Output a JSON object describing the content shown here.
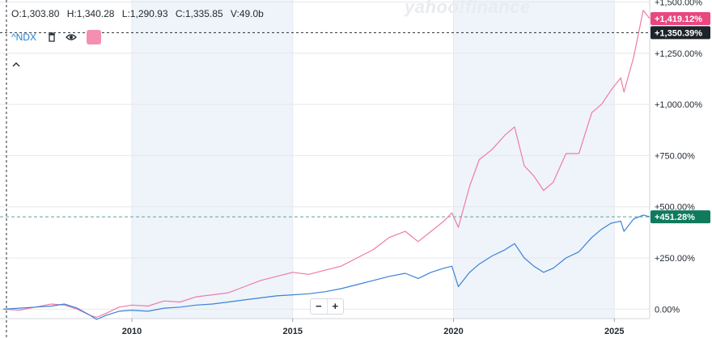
{
  "ohlc": {
    "open": "O:1,303.80",
    "high": "H:1,340.28",
    "low": "L:1,290.93",
    "close": "C:1,335.85",
    "volume": "V:49.0b"
  },
  "legend": {
    "symbol": "^NDX",
    "swatch_color": "#f48fb1"
  },
  "watermark": "yahoo!finance",
  "zoom": {
    "minus": "−",
    "plus": "+"
  },
  "colors": {
    "pink_series": "#ef7ba7",
    "blue_series": "#3b82d6",
    "pink_tag": "#e8477f",
    "green_tag": "#0f7a5c",
    "crosshair_tag": "#1d232a",
    "band": "#eef4fa",
    "grid": "#e6e8eb"
  },
  "chart_data": {
    "type": "line",
    "x_unit": "year",
    "x_ticks": [
      2010,
      2015,
      2020,
      2025
    ],
    "x_tick_labels": [
      "2010",
      "2015",
      "2020",
      "2025"
    ],
    "xlim": [
      2005.9,
      2026.1
    ],
    "shaded_year_bands": [
      [
        2010,
        2015
      ],
      [
        2020,
        2025
      ]
    ],
    "y_unit": "percent",
    "y_ticks": [
      0,
      250,
      500,
      750,
      1000,
      1250,
      1500
    ],
    "y_tick_labels": [
      "0.00%",
      "+250.00%",
      "+500.00%",
      "+750.00%",
      "+1,000.00%",
      "+1,250.00%",
      "+1,500.00%"
    ],
    "ylim": [
      -50,
      1510
    ],
    "grid": true,
    "series": [
      {
        "color": "#ef7ba7",
        "last_label": "+1,419.12%",
        "points": [
          [
            2006.0,
            0
          ],
          [
            2006.5,
            -5
          ],
          [
            2007.0,
            10
          ],
          [
            2007.5,
            25
          ],
          [
            2007.9,
            20
          ],
          [
            2008.3,
            0
          ],
          [
            2008.7,
            -30
          ],
          [
            2008.9,
            -40
          ],
          [
            2009.2,
            -20
          ],
          [
            2009.6,
            10
          ],
          [
            2010.0,
            20
          ],
          [
            2010.5,
            15
          ],
          [
            2011.0,
            40
          ],
          [
            2011.5,
            35
          ],
          [
            2012.0,
            60
          ],
          [
            2012.5,
            70
          ],
          [
            2013.0,
            80
          ],
          [
            2013.5,
            110
          ],
          [
            2014.0,
            140
          ],
          [
            2014.5,
            160
          ],
          [
            2015.0,
            180
          ],
          [
            2015.5,
            170
          ],
          [
            2016.0,
            190
          ],
          [
            2016.5,
            210
          ],
          [
            2017.0,
            250
          ],
          [
            2017.5,
            290
          ],
          [
            2018.0,
            350
          ],
          [
            2018.5,
            380
          ],
          [
            2018.9,
            330
          ],
          [
            2019.3,
            380
          ],
          [
            2019.7,
            430
          ],
          [
            2019.95,
            470
          ],
          [
            2020.15,
            400
          ],
          [
            2020.5,
            600
          ],
          [
            2020.8,
            730
          ],
          [
            2021.2,
            780
          ],
          [
            2021.6,
            850
          ],
          [
            2021.9,
            890
          ],
          [
            2022.2,
            700
          ],
          [
            2022.5,
            650
          ],
          [
            2022.8,
            580
          ],
          [
            2023.1,
            620
          ],
          [
            2023.5,
            760
          ],
          [
            2023.9,
            760
          ],
          [
            2024.3,
            960
          ],
          [
            2024.6,
            1000
          ],
          [
            2024.9,
            1070
          ],
          [
            2025.2,
            1130
          ],
          [
            2025.3,
            1060
          ],
          [
            2025.6,
            1230
          ],
          [
            2025.9,
            1460
          ],
          [
            2026.1,
            1419
          ]
        ]
      },
      {
        "color": "#3b82d6",
        "last_label": "+451.28%",
        "points": [
          [
            2006.0,
            0
          ],
          [
            2006.5,
            5
          ],
          [
            2007.0,
            10
          ],
          [
            2007.5,
            15
          ],
          [
            2007.9,
            25
          ],
          [
            2008.3,
            5
          ],
          [
            2008.7,
            -30
          ],
          [
            2008.9,
            -50
          ],
          [
            2009.2,
            -30
          ],
          [
            2009.6,
            -10
          ],
          [
            2010.0,
            -5
          ],
          [
            2010.5,
            -10
          ],
          [
            2011.0,
            5
          ],
          [
            2011.5,
            10
          ],
          [
            2012.0,
            20
          ],
          [
            2012.5,
            25
          ],
          [
            2013.0,
            35
          ],
          [
            2013.5,
            45
          ],
          [
            2014.0,
            55
          ],
          [
            2014.5,
            65
          ],
          [
            2015.0,
            70
          ],
          [
            2015.5,
            75
          ],
          [
            2016.0,
            85
          ],
          [
            2016.5,
            100
          ],
          [
            2017.0,
            120
          ],
          [
            2017.5,
            140
          ],
          [
            2018.0,
            160
          ],
          [
            2018.5,
            175
          ],
          [
            2018.9,
            150
          ],
          [
            2019.3,
            180
          ],
          [
            2019.7,
            200
          ],
          [
            2019.95,
            210
          ],
          [
            2020.15,
            110
          ],
          [
            2020.5,
            180
          ],
          [
            2020.8,
            220
          ],
          [
            2021.2,
            260
          ],
          [
            2021.6,
            290
          ],
          [
            2021.9,
            320
          ],
          [
            2022.2,
            250
          ],
          [
            2022.5,
            210
          ],
          [
            2022.8,
            180
          ],
          [
            2023.1,
            200
          ],
          [
            2023.5,
            250
          ],
          [
            2023.9,
            280
          ],
          [
            2024.3,
            350
          ],
          [
            2024.6,
            390
          ],
          [
            2024.9,
            420
          ],
          [
            2025.2,
            430
          ],
          [
            2025.3,
            380
          ],
          [
            2025.6,
            440
          ],
          [
            2025.9,
            460
          ],
          [
            2026.1,
            451.28
          ]
        ]
      }
    ],
    "crosshair_label": "+1,350.39%",
    "crosshair_value": 1350.39,
    "crosshair_x": 2006.1,
    "reference_value": 451.28
  }
}
